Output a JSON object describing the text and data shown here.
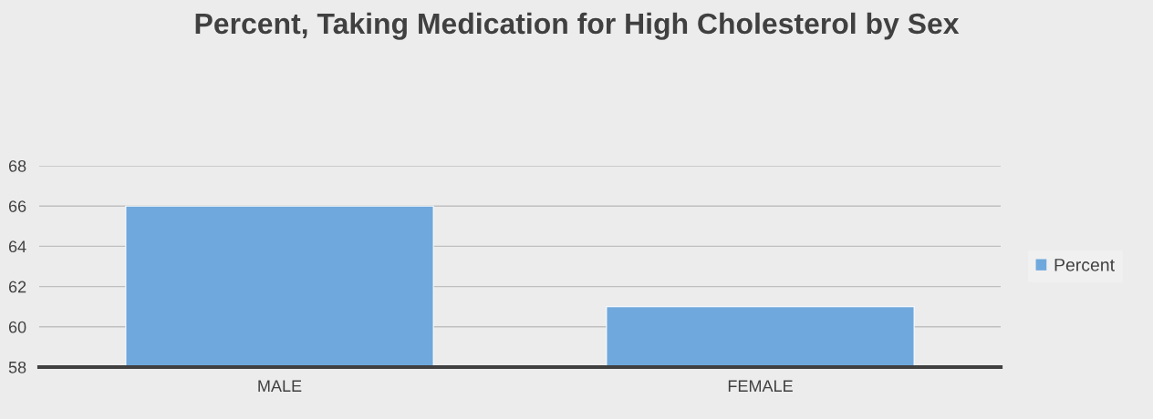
{
  "chart_data": {
    "type": "bar",
    "title": "Percent, Taking Medication for High Cholesterol by Sex",
    "categories": [
      "MALE",
      "FEMALE"
    ],
    "series": [
      {
        "name": "Percent",
        "color": "#6fa8dc",
        "values": [
          66,
          61
        ]
      }
    ],
    "ylim": [
      58,
      68
    ],
    "yticks": [
      58,
      60,
      62,
      64,
      66,
      68
    ],
    "grid": "y",
    "legend": "right"
  }
}
